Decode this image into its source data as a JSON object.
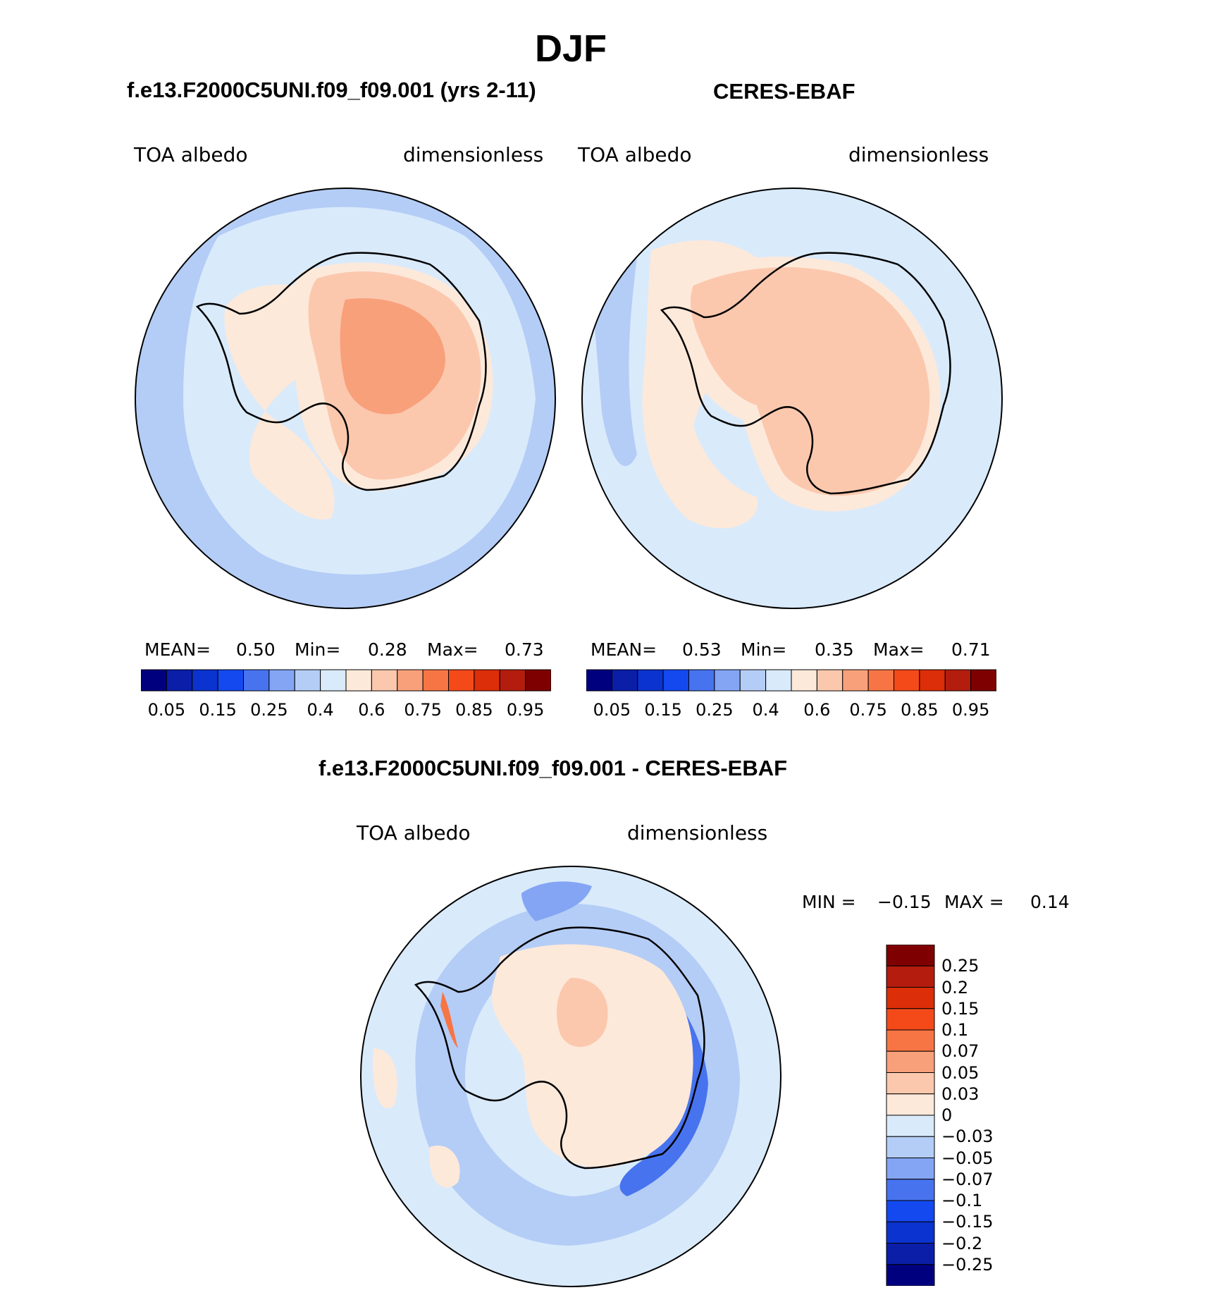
{
  "main_title": "DJF",
  "panels": [
    {
      "title": "f.e13.F2000C5UNI.f09_f09.001 (yrs 2-11)",
      "variable": "TOA albedo",
      "units": "dimensionless",
      "stats": {
        "mean_label": "MEAN=",
        "mean": "0.50",
        "min_label": "Min=",
        "min": "0.28",
        "max_label": "Max=",
        "max": "0.73"
      }
    },
    {
      "title": "CERES-EBAF",
      "variable": "TOA albedo",
      "units": "dimensionless",
      "stats": {
        "mean_label": "MEAN=",
        "mean": "0.53",
        "min_label": "Min=",
        "min": "0.35",
        "max_label": "Max=",
        "max": "0.71"
      }
    }
  ],
  "diff_panel": {
    "title": "f.e13.F2000C5UNI.f09_f09.001 - CERES-EBAF",
    "variable": "TOA albedo",
    "units": "dimensionless",
    "min_label": "MIN =",
    "min": "−0.15",
    "max_label": "MAX =",
    "max": "0.14"
  },
  "chart_data": [
    {
      "type": "heatmap",
      "projection": "south-polar stereographic",
      "title": "f.e13.F2000C5UNI.f09_f09.001 (yrs 2-11)",
      "variable": "TOA albedo",
      "units": "dimensionless",
      "mean": 0.5,
      "min": 0.28,
      "max": 0.73,
      "levels": [
        0.05,
        0.1,
        0.15,
        0.2,
        0.25,
        0.3,
        0.4,
        0.5,
        0.6,
        0.7,
        0.75,
        0.8,
        0.85,
        0.9,
        0.95
      ],
      "colorbar_ticks": [
        "0.05",
        "0.15",
        "0.25",
        "0.4",
        "0.6",
        "0.75",
        "0.85",
        "0.95"
      ],
      "colors": [
        "#00007f",
        "#0a1ea8",
        "#0b33cf",
        "#1449f0",
        "#4773ef",
        "#84a5f4",
        "#b4cdf6",
        "#d9eafb",
        "#fde9da",
        "#fbc8ae",
        "#f8a07a",
        "#f77545",
        "#f44a1a",
        "#dc2e08",
        "#b41d0e",
        "#7f0000"
      ]
    },
    {
      "type": "heatmap",
      "projection": "south-polar stereographic",
      "title": "CERES-EBAF",
      "variable": "TOA albedo",
      "units": "dimensionless",
      "mean": 0.53,
      "min": 0.35,
      "max": 0.71,
      "levels": [
        0.05,
        0.1,
        0.15,
        0.2,
        0.25,
        0.3,
        0.4,
        0.5,
        0.6,
        0.7,
        0.75,
        0.8,
        0.85,
        0.9,
        0.95
      ],
      "colorbar_ticks": [
        "0.05",
        "0.15",
        "0.25",
        "0.4",
        "0.6",
        "0.75",
        "0.85",
        "0.95"
      ]
    },
    {
      "type": "heatmap",
      "projection": "south-polar stereographic",
      "title": "f.e13.F2000C5UNI.f09_f09.001 - CERES-EBAF",
      "variable": "TOA albedo",
      "units": "dimensionless",
      "min": -0.15,
      "max": 0.14,
      "colorbar_ticks": [
        "0.25",
        "0.2",
        "0.15",
        "0.1",
        "0.07",
        "0.05",
        "0.03",
        "0",
        "−0.03",
        "−0.05",
        "−0.07",
        "−0.1",
        "−0.15",
        "−0.2",
        "−0.25"
      ],
      "colors_top_to_bottom": [
        "#7f0000",
        "#b41d0e",
        "#dc2e08",
        "#f44a1a",
        "#f77545",
        "#f8a07a",
        "#fbc8ae",
        "#fde9da",
        "#d9eafb",
        "#b4cdf6",
        "#84a5f4",
        "#4773ef",
        "#1449f0",
        "#0b33cf",
        "#0a1ea8",
        "#00007f"
      ]
    }
  ]
}
